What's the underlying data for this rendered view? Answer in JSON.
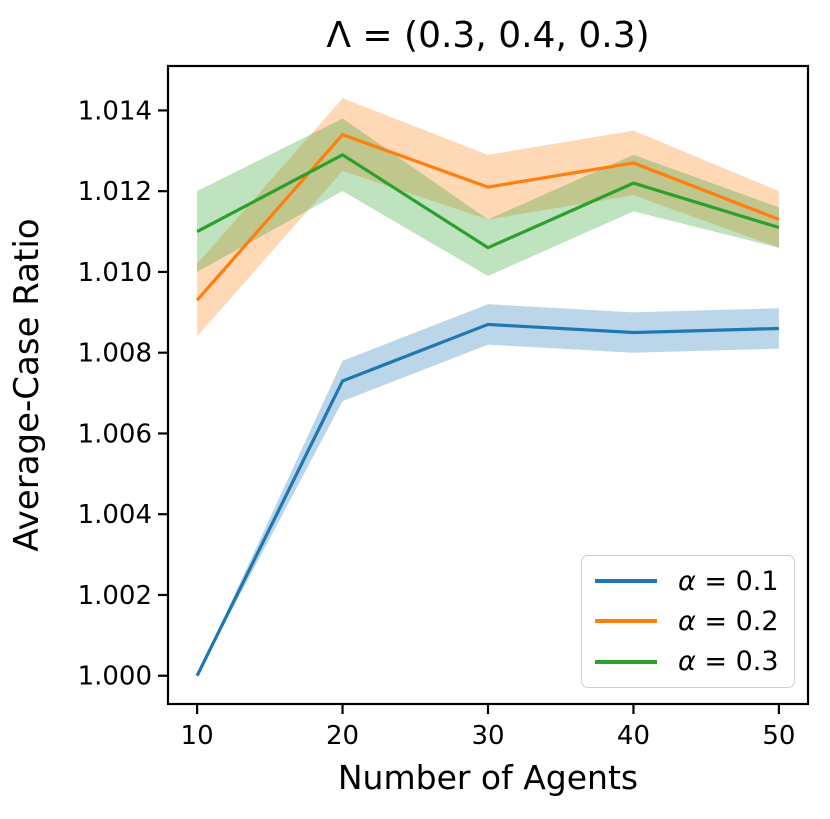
{
  "figure": {
    "background": "#ffffff",
    "axis_color": "#000000"
  },
  "chart_data": {
    "type": "line",
    "title": "Λ = (0.3, 0.4, 0.3)",
    "xlabel": "Number of Agents",
    "ylabel": "Average-Case Ratio",
    "x": [
      10,
      20,
      30,
      40,
      50
    ],
    "xticks": [
      10,
      20,
      30,
      40,
      50
    ],
    "yticks": [
      1.0,
      1.002,
      1.004,
      1.006,
      1.008,
      1.01,
      1.012,
      1.014
    ],
    "xlim": [
      8,
      52
    ],
    "ylim": [
      0.9993,
      1.0151
    ],
    "grid": false,
    "legend_position": "lower right",
    "band_opacity": 0.3,
    "series": [
      {
        "name": "α = 0.1",
        "symbol": "α",
        "rest": " = 0.1",
        "color": "#1f77b4",
        "values": [
          1.0,
          1.0073,
          1.0087,
          1.0085,
          1.0086
        ],
        "band_lo": [
          1.0,
          1.0068,
          1.0082,
          1.008,
          1.0081
        ],
        "band_hi": [
          1.0,
          1.0078,
          1.0092,
          1.009,
          1.0091
        ]
      },
      {
        "name": "α = 0.2",
        "symbol": "α",
        "rest": " = 0.2",
        "color": "#ff7f0e",
        "values": [
          1.0093,
          1.0134,
          1.0121,
          1.0127,
          1.0113
        ],
        "band_lo": [
          1.0084,
          1.0125,
          1.0113,
          1.0119,
          1.0106
        ],
        "band_hi": [
          1.0102,
          1.0143,
          1.0129,
          1.0135,
          1.012
        ]
      },
      {
        "name": "α = 0.3",
        "symbol": "α",
        "rest": " = 0.3",
        "color": "#2ca02c",
        "values": [
          1.011,
          1.0129,
          1.0106,
          1.0122,
          1.0111
        ],
        "band_lo": [
          1.01,
          1.012,
          1.0099,
          1.0115,
          1.0106
        ],
        "band_hi": [
          1.012,
          1.0138,
          1.0113,
          1.0129,
          1.0116
        ]
      }
    ]
  }
}
